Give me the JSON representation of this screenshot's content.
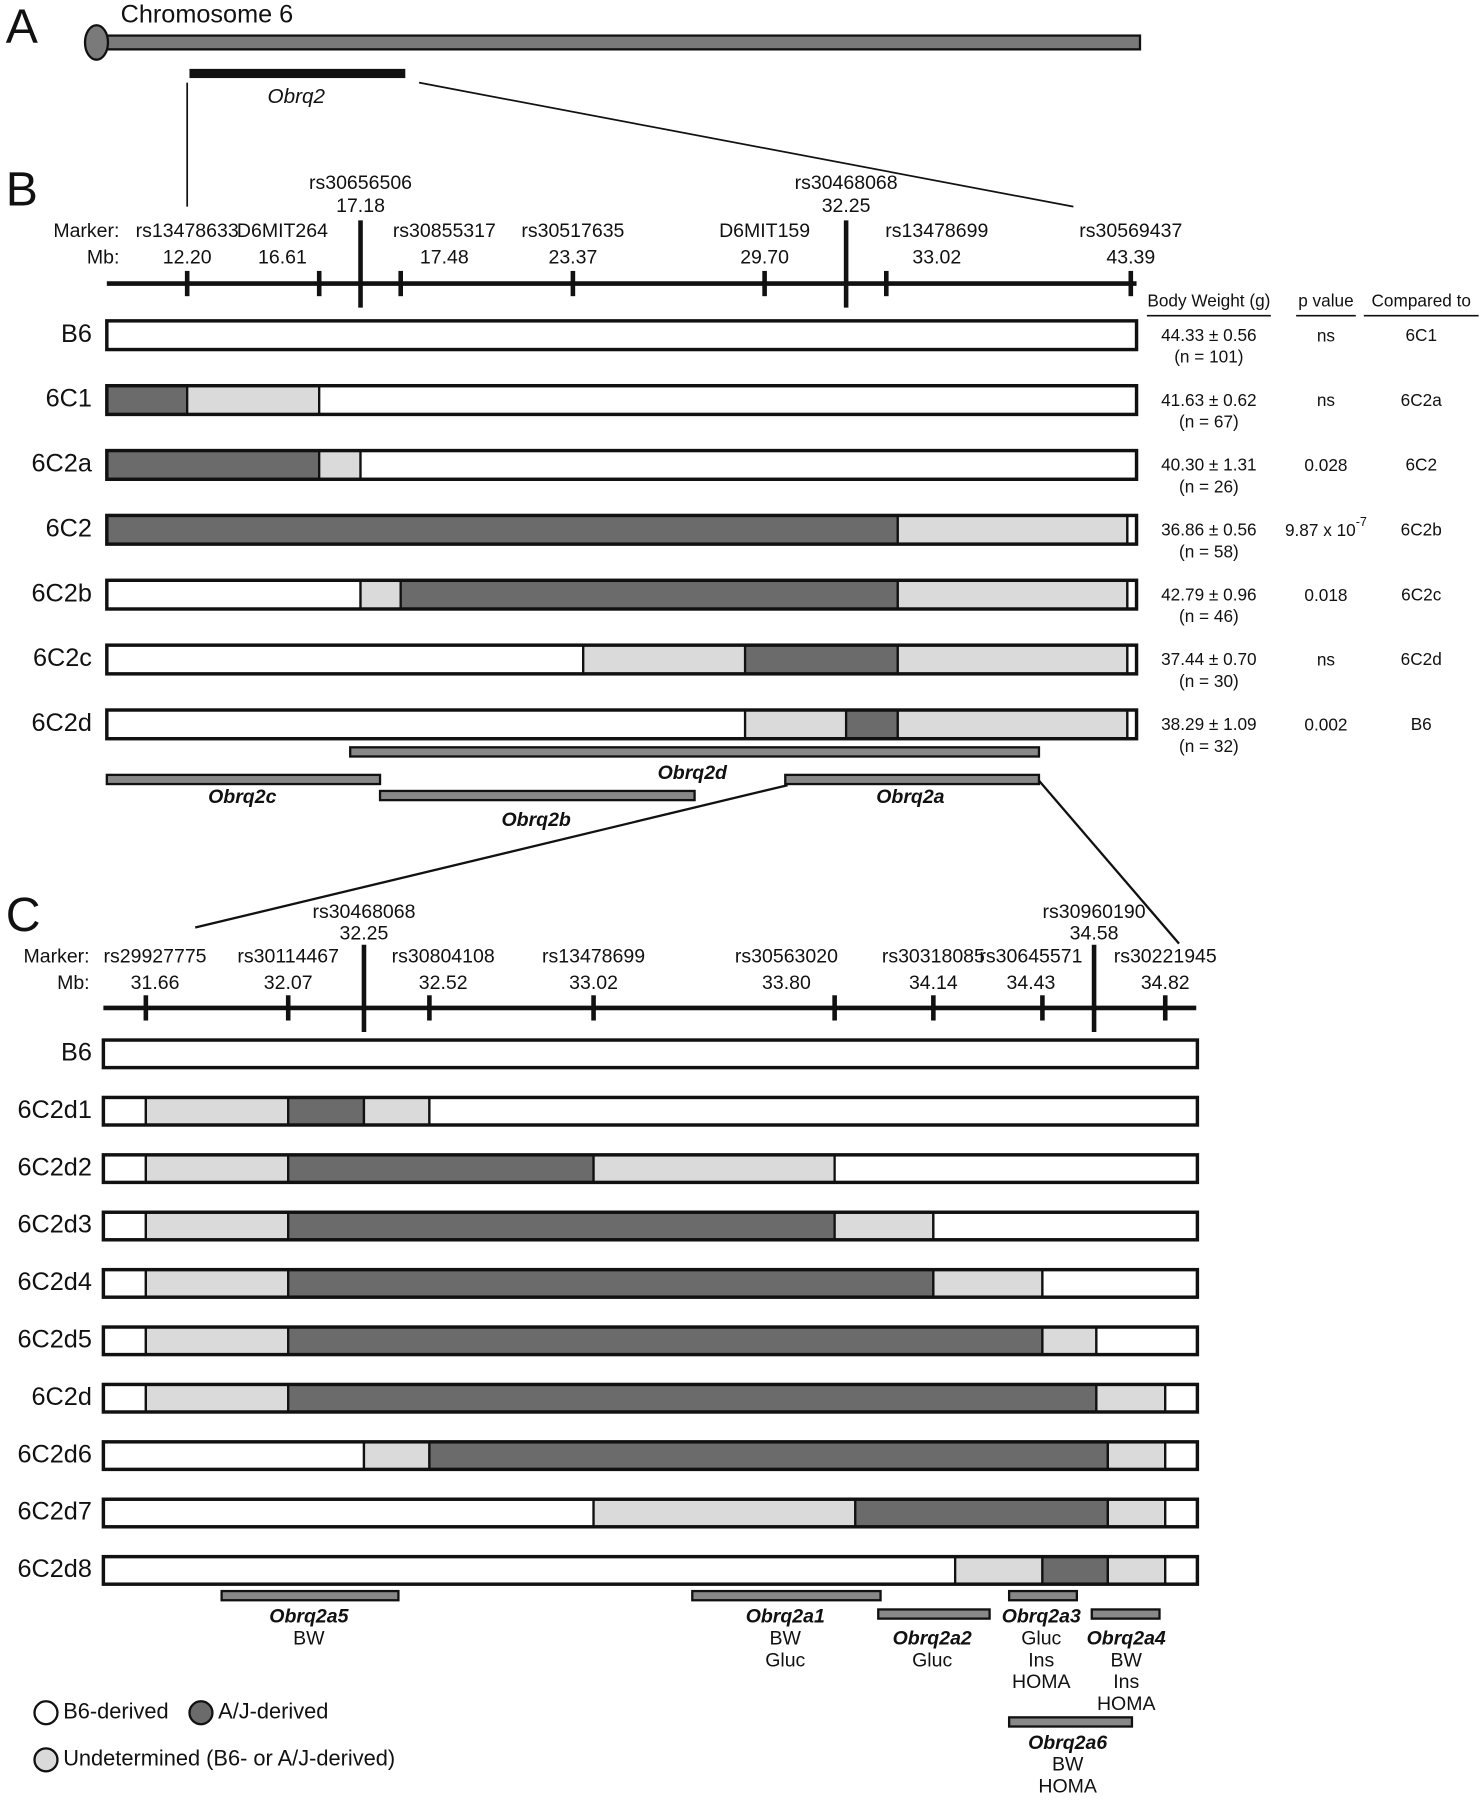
{
  "panel_a": {
    "label": "A",
    "chromosome": "Chromosome 6",
    "region": "Obrq2"
  },
  "panel_b": {
    "label": "B",
    "marker_heading": "Marker:",
    "mb_heading": "Mb:",
    "markers": [
      {
        "name": "rs13478633",
        "mb": "12.20"
      },
      {
        "name": "D6MIT264",
        "mb": "16.61"
      },
      {
        "name": "rs30656506",
        "mb": "17.18"
      },
      {
        "name": "rs30855317",
        "mb": "17.48"
      },
      {
        "name": "rs30517635",
        "mb": "23.37"
      },
      {
        "name": "D6MIT159",
        "mb": "29.70"
      },
      {
        "name": "rs30468068",
        "mb": "32.25"
      },
      {
        "name": "rs13478699",
        "mb": "33.02"
      },
      {
        "name": "rs30569437",
        "mb": "43.39"
      }
    ],
    "strains": [
      "B6",
      "6C1",
      "6C2a",
      "6C2",
      "6C2b",
      "6C2c",
      "6C2d"
    ],
    "table": {
      "headers": [
        "Body Weight (g)",
        "p value",
        "Compared to"
      ],
      "rows": [
        {
          "weight": "44.33 ± 0.56",
          "n": "(n = 101)",
          "p": "ns",
          "compared": "6C1"
        },
        {
          "weight": "41.63 ± 0.62",
          "n": "(n = 67)",
          "p": "ns",
          "compared": "6C2a"
        },
        {
          "weight": "40.30 ± 1.31",
          "n": "(n = 26)",
          "p": "0.028",
          "compared": "6C2"
        },
        {
          "weight": "36.86 ± 0.56",
          "n": "(n = 58)",
          "p": "9.87 x 10",
          "p_exponent": "-7",
          "compared": "6C2b"
        },
        {
          "weight": "42.79 ± 0.96",
          "n": "(n = 46)",
          "p": "0.018",
          "compared": "6C2c"
        },
        {
          "weight": "37.44 ± 0.70",
          "n": "(n = 30)",
          "p": "ns",
          "compared": "6C2d"
        },
        {
          "weight": "38.29 ± 1.09",
          "n": "(n = 32)",
          "p": "0.002",
          "compared": "B6"
        }
      ]
    },
    "qtls": [
      "Obrq2d",
      "Obrq2c",
      "Obrq2b",
      "Obrq2a"
    ]
  },
  "panel_c": {
    "label": "C",
    "marker_heading": "Marker:",
    "mb_heading": "Mb:",
    "markers": [
      {
        "name": "rs29927775",
        "mb": "31.66"
      },
      {
        "name": "rs30114467",
        "mb": "32.07"
      },
      {
        "name": "rs30468068",
        "mb": "32.25"
      },
      {
        "name": "rs30804108",
        "mb": "32.52"
      },
      {
        "name": "rs13478699",
        "mb": "33.02"
      },
      {
        "name": "rs30563020",
        "mb": "33.80"
      },
      {
        "name": "rs30318085",
        "mb": "34.14"
      },
      {
        "name": "rs30645571",
        "mb": "34.43"
      },
      {
        "name": "rs30960190",
        "mb": "34.58"
      },
      {
        "name": "rs30221945",
        "mb": "34.82"
      }
    ],
    "strains": [
      "B6",
      "6C2d1",
      "6C2d2",
      "6C2d3",
      "6C2d4",
      "6C2d5",
      "6C2d",
      "6C2d6",
      "6C2d7",
      "6C2d8"
    ],
    "qtls": [
      {
        "name": "Obrq2a5",
        "traits": [
          "BW"
        ]
      },
      {
        "name": "Obrq2a1",
        "traits": [
          "BW",
          "Gluc"
        ]
      },
      {
        "name": "Obrq2a2",
        "traits": [
          "Gluc"
        ]
      },
      {
        "name": "Obrq2a3",
        "traits": [
          "Gluc",
          "Ins",
          "HOMA"
        ]
      },
      {
        "name": "Obrq2a4",
        "traits": [
          "BW",
          "Ins",
          "HOMA"
        ]
      },
      {
        "name": "Obrq2a6",
        "traits": [
          "BW",
          "HOMA"
        ]
      }
    ]
  },
  "legend": [
    "B6-derived",
    "A/J-derived",
    "Undetermined (B6- or A/J-derived)"
  ]
}
